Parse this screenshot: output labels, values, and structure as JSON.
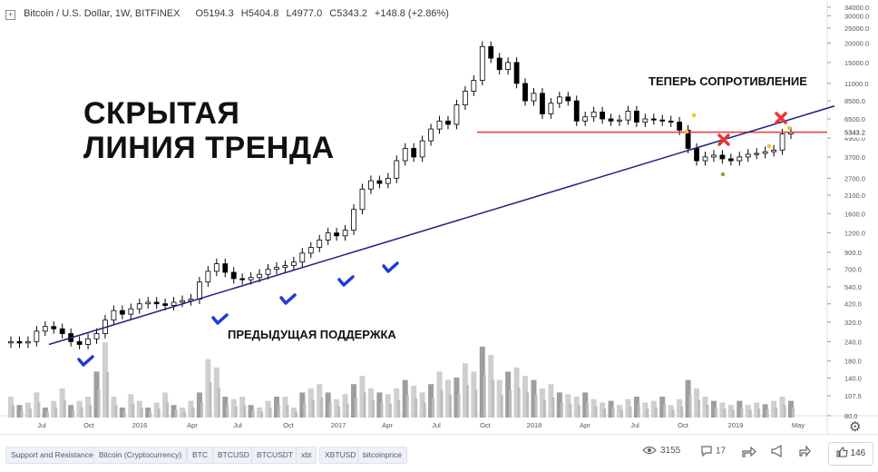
{
  "header": {
    "symbol": "Bitcoin / U.S. Dollar, 1W, BITFINEX",
    "open": "O5194.3",
    "high": "H5404.8",
    "low": "L4977.0",
    "close": "C5343.2",
    "change": "+148.8 (+2.86%)"
  },
  "annotations": {
    "title_line1": "СКРЫТАЯ",
    "title_line2": "ЛИНИЯ ТРЕНДА",
    "resistance_note": "ТЕПЕРЬ СОПРОТИВЛЕНИЕ",
    "support_note": "ПРЕДЫДУЩАЯ ПОДДЕРЖКА"
  },
  "chart_data": {
    "type": "candlestick",
    "scale": "log",
    "y_ticks": [
      "34000.0",
      "30000.0",
      "25000.0",
      "20000.0",
      "15000.0",
      "11000.0",
      "8500.0",
      "6500.0",
      "5343.2",
      "4900.0",
      "3700.0",
      "2700.0",
      "2100.0",
      "1600.0",
      "1200.0",
      "900.0",
      "700.0",
      "540.0",
      "420.0",
      "320.0",
      "240.0",
      "180.0",
      "140.0",
      "107.5",
      "80.0"
    ],
    "y_range": [
      80,
      34000
    ],
    "x_ticks": [
      "Jul",
      "Oct",
      "2016",
      "Apr",
      "Jul",
      "Oct",
      "2017",
      "Apr",
      "Jul",
      "Oct",
      "2018",
      "Apr",
      "Jul",
      "Oct",
      "2019",
      "May"
    ],
    "last_price": 5343.2,
    "resistance_level": 5343.2,
    "trendline": {
      "start": {
        "x": "2015-06",
        "y": 230
      },
      "end": {
        "x": "2019-05",
        "y": 6700
      }
    },
    "closes": [
      240,
      235,
      240,
      280,
      300,
      290,
      270,
      240,
      230,
      250,
      270,
      330,
      380,
      360,
      390,
      420,
      430,
      420,
      410,
      430,
      440,
      450,
      580,
      680,
      760,
      670,
      610,
      600,
      620,
      650,
      700,
      720,
      740,
      780,
      890,
      970,
      1080,
      1200,
      1150,
      1250,
      1700,
      2300,
      2600,
      2500,
      2700,
      3500,
      4200,
      3700,
      4700,
      5600,
      6300,
      6000,
      8000,
      9800,
      11500,
      19000,
      16000,
      13500,
      15000,
      11000,
      8500,
      9500,
      7000,
      8200,
      9000,
      8500,
      6300,
      6700,
      7200,
      6500,
      6300,
      6400,
      7300,
      6200,
      6500,
      6400,
      6300,
      6200,
      5500,
      4200,
      3500,
      3700,
      3800,
      3600,
      3500,
      3700,
      3850,
      3900,
      4000,
      4100,
      5200,
      5343
    ],
    "volumes": [
      0.25,
      0.15,
      0.18,
      0.3,
      0.12,
      0.2,
      0.35,
      0.15,
      0.2,
      0.25,
      0.55,
      0.9,
      0.25,
      0.12,
      0.28,
      0.2,
      0.12,
      0.18,
      0.3,
      0.15,
      0.12,
      0.2,
      0.3,
      0.7,
      0.6,
      0.25,
      0.22,
      0.25,
      0.15,
      0.12,
      0.2,
      0.25,
      0.25,
      0.12,
      0.3,
      0.35,
      0.4,
      0.3,
      0.22,
      0.28,
      0.4,
      0.5,
      0.35,
      0.3,
      0.28,
      0.35,
      0.45,
      0.38,
      0.3,
      0.4,
      0.55,
      0.45,
      0.48,
      0.65,
      0.55,
      0.85,
      0.75,
      0.45,
      0.55,
      0.6,
      0.5,
      0.45,
      0.35,
      0.4,
      0.3,
      0.28,
      0.25,
      0.3,
      0.22,
      0.18,
      0.2,
      0.15,
      0.22,
      0.25,
      0.18,
      0.2,
      0.25,
      0.15,
      0.22,
      0.45,
      0.35,
      0.25,
      0.2,
      0.18,
      0.15,
      0.2,
      0.15,
      0.18,
      0.16,
      0.2,
      0.25,
      0.2
    ],
    "colors": {
      "trendline": "#1a237e",
      "resistance": "#e53935",
      "cross": "#e53935",
      "check": "#1f3bd6",
      "candle": "#000000",
      "volume": "#b0b0b0"
    }
  },
  "footer": {
    "tags": [
      "Support and Resistance",
      "Bitcoin (Cryptocurrency)",
      "BTC",
      "BTCUSD",
      "BTCUSDT",
      "xbt",
      "XBTUSD",
      "bitcoinprice"
    ],
    "views": "3155",
    "comments": "17",
    "likes": "146"
  }
}
